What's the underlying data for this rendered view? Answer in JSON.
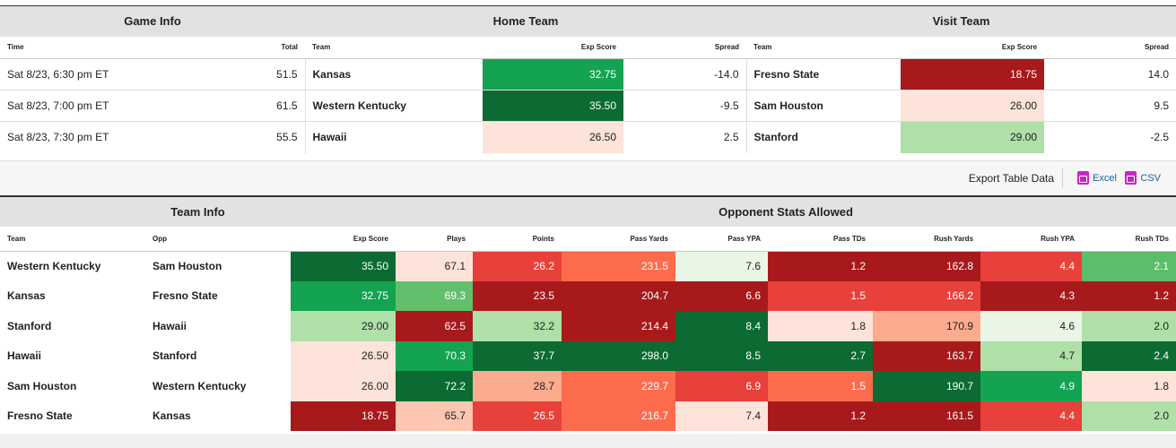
{
  "games": {
    "groups": {
      "game_info": "Game Info",
      "home_team": "Home Team",
      "visit_team": "Visit Team"
    },
    "columns": {
      "time": "Time",
      "total": "Total",
      "home_team": "Team",
      "home_exp": "Exp Score",
      "home_spread": "Spread",
      "visit_team": "Team",
      "visit_exp": "Exp Score",
      "visit_spread": "Spread"
    },
    "rows": [
      {
        "time": "Sat 8/23, 6:30 pm ET",
        "total": "51.5",
        "home": "Kansas",
        "home_exp": "32.75",
        "home_spread": "-14.0",
        "visit": "Fresno State",
        "visit_exp": "18.75",
        "visit_spread": "14.0"
      },
      {
        "time": "Sat 8/23, 7:00 pm ET",
        "total": "61.5",
        "home": "Western Kentucky",
        "home_exp": "35.50",
        "home_spread": "-9.5",
        "visit": "Sam Houston",
        "visit_exp": "26.00",
        "visit_spread": "9.5"
      },
      {
        "time": "Sat 8/23, 7:30 pm ET",
        "total": "55.5",
        "home": "Hawaii",
        "home_exp": "26.50",
        "home_spread": "2.5",
        "visit": "Stanford",
        "visit_exp": "29.00",
        "visit_spread": "-2.5"
      }
    ]
  },
  "export": {
    "label": "Export Table Data",
    "excel": "Excel",
    "csv": "CSV"
  },
  "stats": {
    "groups": {
      "team_info": "Team Info",
      "opp_stats": "Opponent Stats Allowed"
    },
    "columns": {
      "team": "Team",
      "opp": "Opp",
      "exp": "Exp Score",
      "plays": "Plays",
      "points": "Points",
      "pass_yards": "Pass Yards",
      "pass_ypa": "Pass YPA",
      "pass_tds": "Pass TDs",
      "rush_yards": "Rush Yards",
      "rush_ypa": "Rush YPA",
      "rush_tds": "Rush TDs"
    },
    "rows": [
      {
        "team": "Western Kentucky",
        "opp": "Sam Houston",
        "exp": "35.50",
        "plays": "67.1",
        "points": "26.2",
        "pass_yards": "231.5",
        "pass_ypa": "7.6",
        "pass_tds": "1.2",
        "rush_yards": "162.8",
        "rush_ypa": "4.4",
        "rush_tds": "2.1"
      },
      {
        "team": "Kansas",
        "opp": "Fresno State",
        "exp": "32.75",
        "plays": "69.3",
        "points": "23.5",
        "pass_yards": "204.7",
        "pass_ypa": "6.6",
        "pass_tds": "1.5",
        "rush_yards": "166.2",
        "rush_ypa": "4.3",
        "rush_tds": "1.2"
      },
      {
        "team": "Stanford",
        "opp": "Hawaii",
        "exp": "29.00",
        "plays": "62.5",
        "points": "32.2",
        "pass_yards": "214.4",
        "pass_ypa": "8.4",
        "pass_tds": "1.8",
        "rush_yards": "170.9",
        "rush_ypa": "4.6",
        "rush_tds": "2.0"
      },
      {
        "team": "Hawaii",
        "opp": "Stanford",
        "exp": "26.50",
        "plays": "70.3",
        "points": "37.7",
        "pass_yards": "298.0",
        "pass_ypa": "8.5",
        "pass_tds": "2.7",
        "rush_yards": "163.7",
        "rush_ypa": "4.7",
        "rush_tds": "2.4"
      },
      {
        "team": "Sam Houston",
        "opp": "Western Kentucky",
        "exp": "26.00",
        "plays": "72.2",
        "points": "28.7",
        "pass_yards": "229.7",
        "pass_ypa": "6.9",
        "pass_tds": "1.5",
        "rush_yards": "190.7",
        "rush_ypa": "4.9",
        "rush_tds": "1.8"
      },
      {
        "team": "Fresno State",
        "opp": "Kansas",
        "exp": "18.75",
        "plays": "65.7",
        "points": "26.5",
        "pass_yards": "216.7",
        "pass_ypa": "7.4",
        "pass_tds": "1.2",
        "rush_yards": "161.5",
        "rush_ypa": "4.4",
        "rush_tds": "2.0"
      }
    ]
  },
  "heat": {
    "games": [
      {
        "home_exp": "#14a351",
        "visit_exp": "#a8191c"
      },
      {
        "home_exp": "#0b6b32",
        "visit_exp": "#fde3d9"
      },
      {
        "home_exp": "#fde3d9",
        "visit_exp": "#aee0a8"
      }
    ],
    "stats": [
      {
        "exp": "#0b6b32",
        "plays": "#fde3d9",
        "points": "#e8403a",
        "pass_yards": "#fc6c4c",
        "pass_ypa": "#eaf6e5",
        "pass_tds": "#a8191c",
        "rush_yards": "#a8191c",
        "rush_ypa": "#e8403a",
        "rush_tds": "#5cbd6a"
      },
      {
        "exp": "#14a351",
        "plays": "#62c06c",
        "points": "#a8191c",
        "pass_yards": "#a8191c",
        "pass_ypa": "#a8191c",
        "pass_tds": "#e8403a",
        "rush_yards": "#e8403a",
        "rush_ypa": "#a8191c",
        "rush_tds": "#a8191c"
      },
      {
        "exp": "#aee0a8",
        "plays": "#a8191c",
        "points": "#aee0a8",
        "pass_yards": "#a8191c",
        "pass_ypa": "#0b6b32",
        "pass_tds": "#fde3d9",
        "rush_yards": "#fcab8e",
        "rush_ypa": "#eaf6e5",
        "rush_tds": "#aee0a8"
      },
      {
        "exp": "#fde3d9",
        "plays": "#14a351",
        "points": "#0b6b32",
        "pass_yards": "#0b6b32",
        "pass_ypa": "#0b6b32",
        "pass_tds": "#0b6b32",
        "rush_yards": "#a8191c",
        "rush_ypa": "#aee0a8",
        "rush_tds": "#0b6b32"
      },
      {
        "exp": "#fde3d9",
        "plays": "#0b6b32",
        "points": "#fcab8e",
        "pass_yards": "#fc6c4c",
        "pass_ypa": "#e8403a",
        "pass_tds": "#fc6c4c",
        "rush_yards": "#0b6b32",
        "rush_ypa": "#14a351",
        "rush_tds": "#fde3d9"
      },
      {
        "exp": "#a8191c",
        "plays": "#fcc6b0",
        "points": "#e8403a",
        "pass_yards": "#fc6c4c",
        "pass_ypa": "#fde3d9",
        "pass_tds": "#a8191c",
        "rush_yards": "#a8191c",
        "rush_ypa": "#e8403a",
        "rush_tds": "#aee0a8"
      }
    ]
  },
  "colors": {
    "link": "#1f5fa0",
    "header_bg": "#e2e2e2",
    "export_icon": "#cc22cc"
  }
}
